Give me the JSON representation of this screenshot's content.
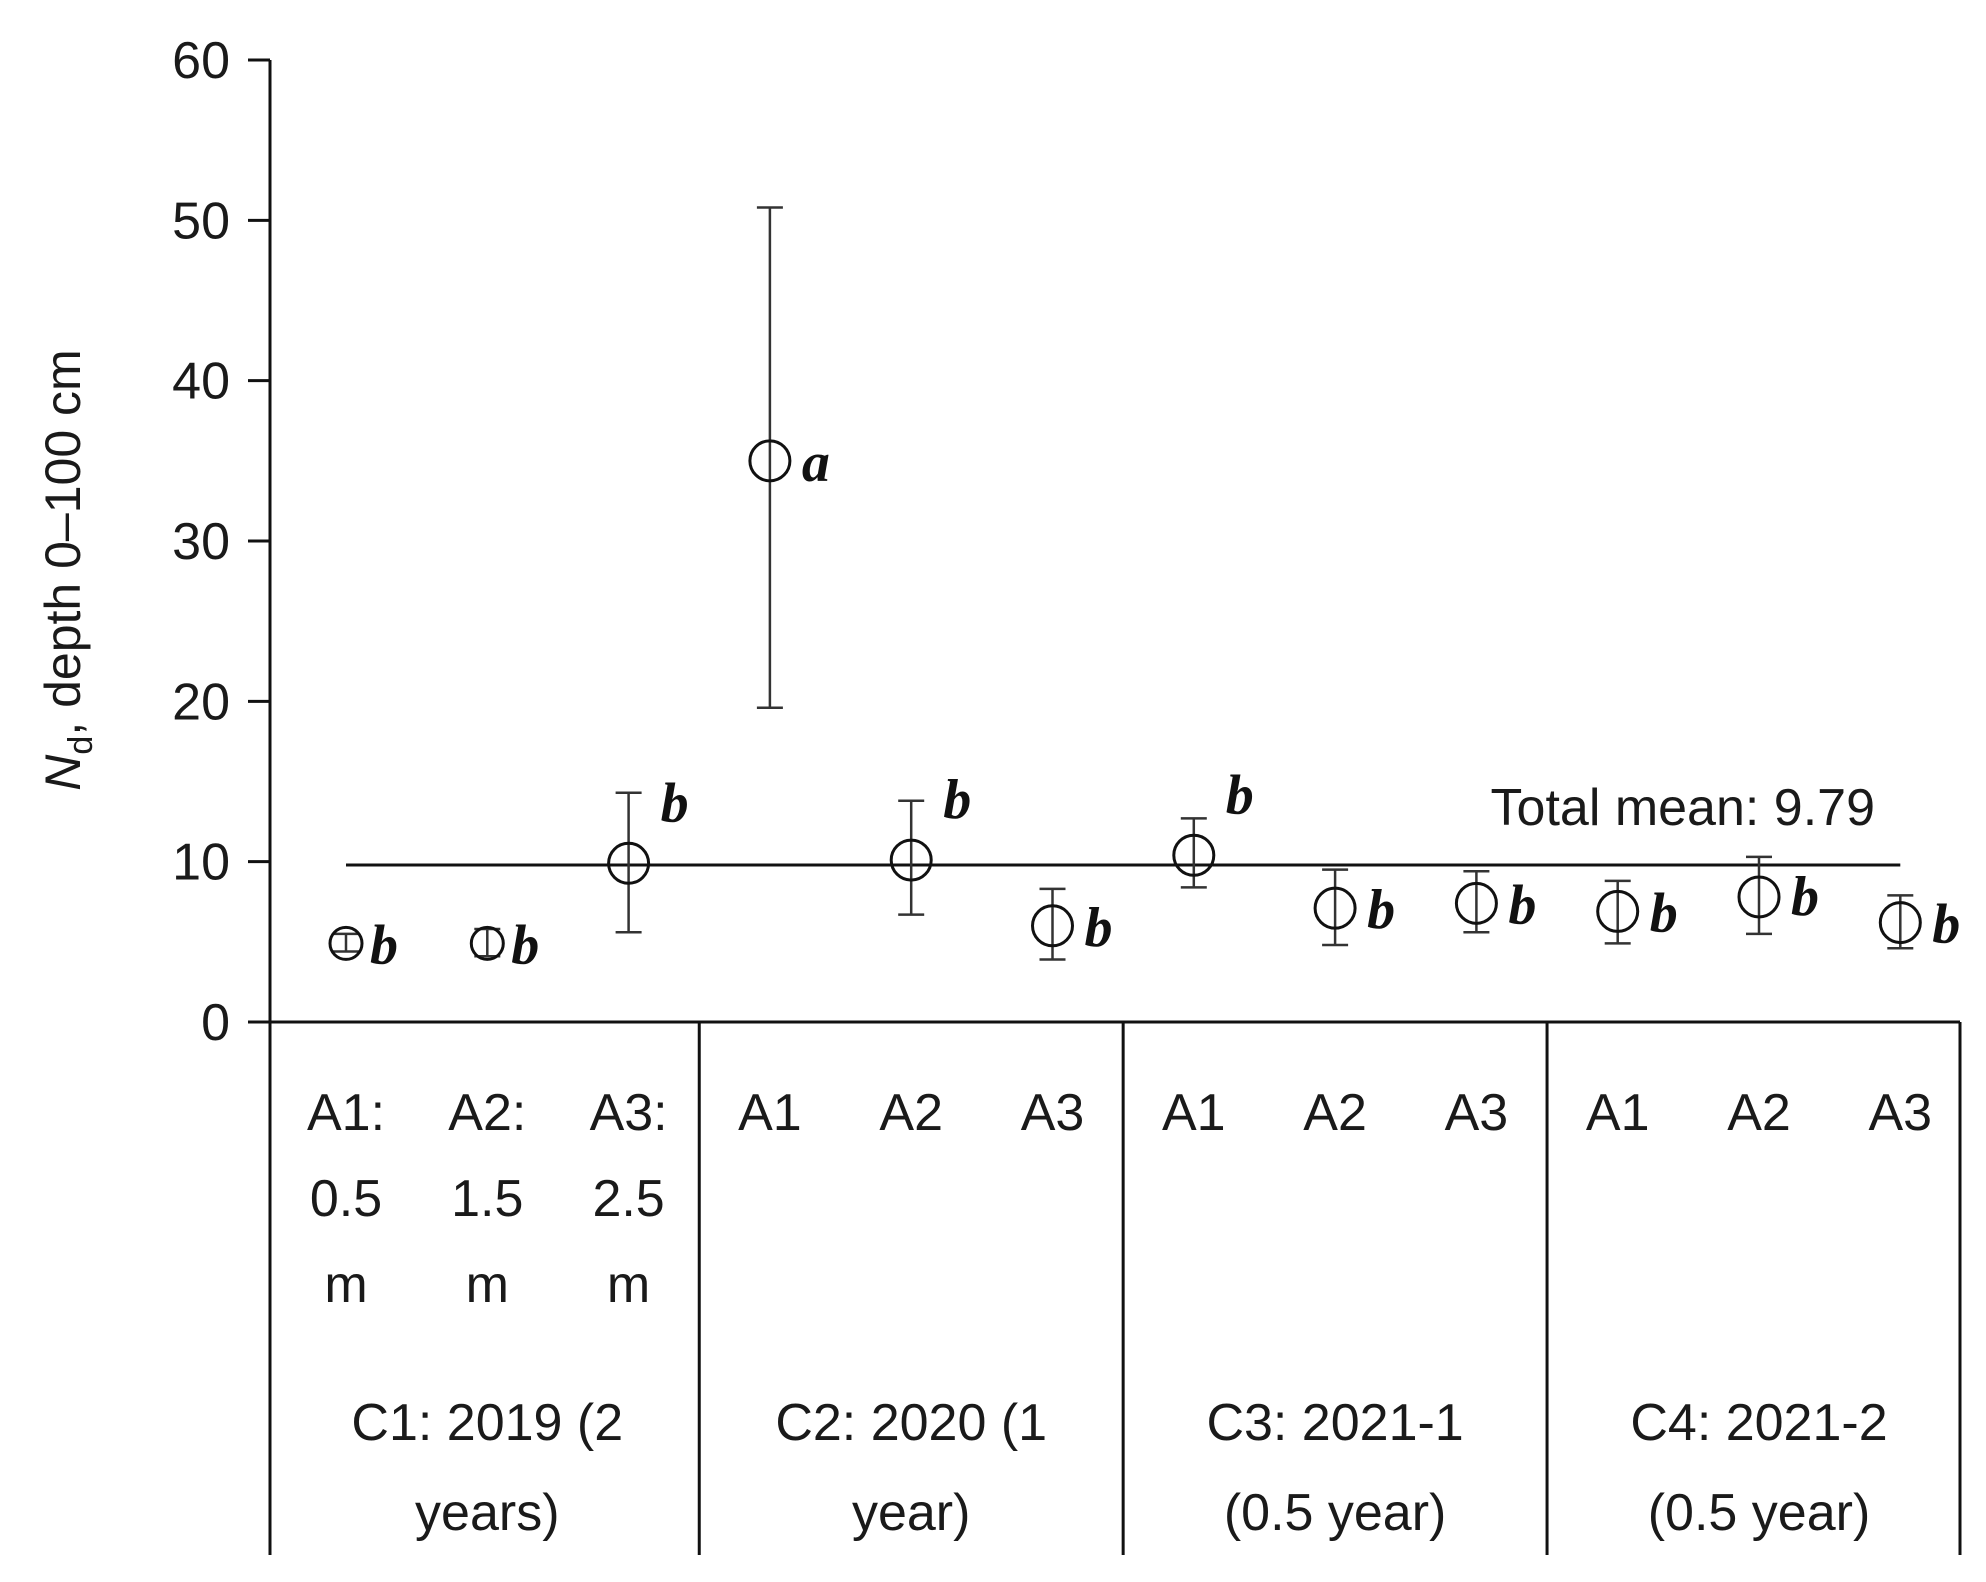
{
  "chart_data": {
    "type": "scatter",
    "ylabel": {
      "var": "N",
      "sub": "d",
      "rest": ", depth 0–100 cm"
    },
    "ylim": [
      0,
      60
    ],
    "yticks": [
      "0",
      "10",
      "20",
      "30",
      "40",
      "50",
      "60"
    ],
    "grid": false,
    "mean": {
      "value": 9.79,
      "label": "Total mean: 9.79"
    },
    "groups": [
      {
        "label_lines": [
          "C1: 2019 (2",
          "years)"
        ]
      },
      {
        "label_lines": [
          "C2: 2020 (1",
          "year)"
        ]
      },
      {
        "label_lines": [
          "C3: 2021-1",
          "(0.5 year)"
        ]
      },
      {
        "label_lines": [
          "C4: 2021-2",
          "(0.5 year)"
        ]
      }
    ],
    "points": [
      {
        "group": 0,
        "label_lines": [
          "A1:",
          "0.5",
          "m"
        ],
        "y": 4.9,
        "lo": 4.4,
        "hi": 5.5,
        "sig": "b"
      },
      {
        "group": 0,
        "label_lines": [
          "A2:",
          "1.5",
          "m"
        ],
        "y": 4.9,
        "lo": 4.1,
        "hi": 5.8,
        "sig": "b"
      },
      {
        "group": 0,
        "label_lines": [
          "A3:",
          "2.5",
          "m"
        ],
        "y": 9.9,
        "lo": 5.6,
        "hi": 14.3,
        "sig": "b"
      },
      {
        "group": 1,
        "label_lines": [
          "A1"
        ],
        "y": 35.0,
        "lo": 19.6,
        "hi": 50.8,
        "sig": "a"
      },
      {
        "group": 1,
        "label_lines": [
          "A2"
        ],
        "y": 10.1,
        "lo": 6.7,
        "hi": 13.8,
        "sig": "b"
      },
      {
        "group": 1,
        "label_lines": [
          "A3"
        ],
        "y": 6.0,
        "lo": 3.9,
        "hi": 8.3,
        "sig": "b"
      },
      {
        "group": 2,
        "label_lines": [
          "A1"
        ],
        "y": 10.4,
        "lo": 8.4,
        "hi": 12.7,
        "sig": "b"
      },
      {
        "group": 2,
        "label_lines": [
          "A2"
        ],
        "y": 7.1,
        "lo": 4.8,
        "hi": 9.5,
        "sig": "b"
      },
      {
        "group": 2,
        "label_lines": [
          "A3"
        ],
        "y": 7.4,
        "lo": 5.6,
        "hi": 9.4,
        "sig": "b"
      },
      {
        "group": 3,
        "label_lines": [
          "A1"
        ],
        "y": 6.9,
        "lo": 4.9,
        "hi": 8.8,
        "sig": "b"
      },
      {
        "group": 3,
        "label_lines": [
          "A2"
        ],
        "y": 7.8,
        "lo": 5.5,
        "hi": 10.3,
        "sig": "b"
      },
      {
        "group": 3,
        "label_lines": [
          "A3"
        ],
        "y": 6.2,
        "lo": 4.6,
        "hi": 7.9,
        "sig": "b"
      }
    ]
  }
}
